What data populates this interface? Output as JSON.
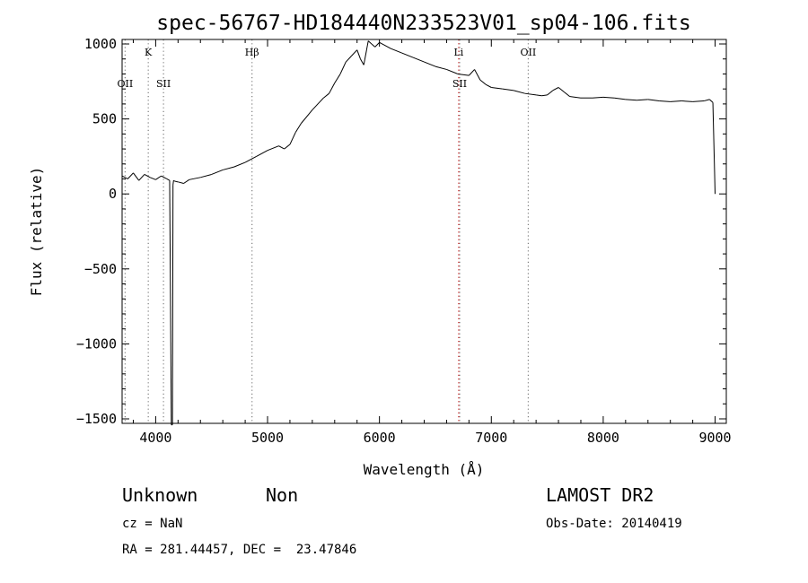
{
  "chart_data": {
    "type": "line",
    "title": "spec-56767-HD184440N233523V01_sp04-106.fits",
    "xlabel": "Wavelength (Å)",
    "ylabel": "Flux (relative)",
    "xlim": [
      3700,
      9100
    ],
    "ylim": [
      -1530,
      1030
    ],
    "x_ticks": [
      4000,
      5000,
      6000,
      7000,
      8000,
      9000
    ],
    "y_ticks": [
      -1500,
      -1000,
      -500,
      0,
      500,
      1000
    ],
    "x_tick_labels": [
      "4000",
      "5000",
      "6000",
      "7000",
      "8000",
      "9000"
    ],
    "y_tick_labels": [
      "−1500",
      "−1000",
      "−500",
      "0",
      "500",
      "1000"
    ],
    "grid": false,
    "series": [
      {
        "color": "#000000",
        "x": [
          3700,
          3750,
          3800,
          3850,
          3900,
          3950,
          4000,
          4050,
          4100,
          4125,
          4140,
          4150,
          4155,
          4160,
          4170,
          4200,
          4250,
          4300,
          4400,
          4500,
          4600,
          4700,
          4800,
          4900,
          5000,
          5100,
          5150,
          5200,
          5250,
          5300,
          5400,
          5500,
          5550,
          5600,
          5650,
          5700,
          5750,
          5800,
          5830,
          5860,
          5900,
          5930,
          5960,
          6000,
          6100,
          6200,
          6300,
          6400,
          6500,
          6600,
          6700,
          6800,
          6850,
          6900,
          6950,
          7000,
          7100,
          7200,
          7300,
          7400,
          7450,
          7500,
          7550,
          7600,
          7650,
          7700,
          7800,
          7900,
          8000,
          8100,
          8200,
          8300,
          8400,
          8500,
          8600,
          8700,
          8800,
          8900,
          8950,
          8980,
          9000
        ],
        "y": [
          120,
          100,
          140,
          90,
          130,
          110,
          95,
          120,
          100,
          90,
          -1540,
          -1540,
          60,
          90,
          85,
          80,
          70,
          95,
          110,
          130,
          160,
          180,
          210,
          250,
          290,
          320,
          300,
          330,
          410,
          470,
          560,
          640,
          670,
          740,
          800,
          880,
          920,
          960,
          900,
          860,
          1020,
          1000,
          980,
          1010,
          970,
          940,
          910,
          880,
          850,
          830,
          800,
          790,
          830,
          760,
          730,
          710,
          700,
          690,
          670,
          660,
          655,
          660,
          690,
          710,
          680,
          650,
          640,
          640,
          645,
          640,
          630,
          625,
          630,
          620,
          615,
          620,
          615,
          620,
          630,
          610,
          0
        ]
      }
    ],
    "lines": [
      {
        "label": "OII",
        "x": 3727,
        "color": "#7f7f7f",
        "row": 2
      },
      {
        "label": "K",
        "x": 3934,
        "color": "#7f7f7f",
        "row": 1
      },
      {
        "label": "SII",
        "x": 4070,
        "color": "#7f7f7f",
        "row": 2
      },
      {
        "label": "Hβ",
        "x": 4861,
        "color": "#7f7f7f",
        "row": 1
      },
      {
        "label": "Li",
        "x": 6708,
        "color": "#d62020",
        "row": 1
      },
      {
        "label": "SII",
        "x": 6717,
        "color": "#7f7f7f",
        "row": 2
      },
      {
        "label": "OII",
        "x": 7330,
        "color": "#7f7f7f",
        "row": 1
      }
    ]
  },
  "info": {
    "class_label": "Unknown",
    "subclass_label": "Non",
    "survey": "LAMOST DR2",
    "cz": "cz = NaN",
    "obs_date": "Obs-Date: 20140419",
    "coords": "RA = 281.44457, DEC =  23.47846"
  }
}
